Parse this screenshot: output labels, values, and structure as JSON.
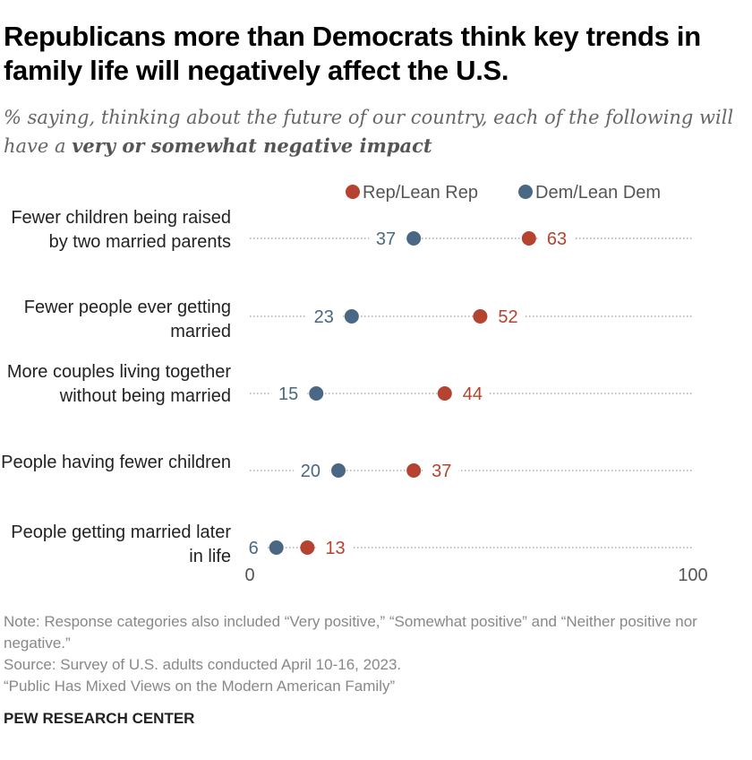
{
  "title": "Republicans more than Democrats think key trends in family life will negatively affect the U.S.",
  "subtitle_plain": "% saying, thinking about the future of our country, each of the following will have a ",
  "subtitle_bold": "very or somewhat negative impact",
  "chart_data": {
    "type": "dot",
    "xlim": [
      0,
      100
    ],
    "tick_labels": [
      "0",
      "100"
    ],
    "legend_position": "top",
    "categories": [
      "Fewer children being raised by two married parents",
      "Fewer people ever getting married",
      "More couples living together without being married",
      "People having fewer children",
      "People getting married later in life"
    ],
    "series": [
      {
        "name": "Rep/Lean Rep",
        "color": "#b5432f",
        "values": [
          63,
          52,
          44,
          37,
          13
        ]
      },
      {
        "name": "Dem/Lean Dem",
        "color": "#4a6883",
        "values": [
          37,
          23,
          15,
          20,
          6
        ]
      }
    ]
  },
  "note": "Note: Response categories also included “Very positive,” “Somewhat positive” and “Neither positive nor negative.”",
  "source": "Source: Survey of U.S. adults conducted April 10-16, 2023.",
  "report": "“Public Has Mixed Views on the Modern American Family”",
  "brand": "PEW RESEARCH CENTER"
}
